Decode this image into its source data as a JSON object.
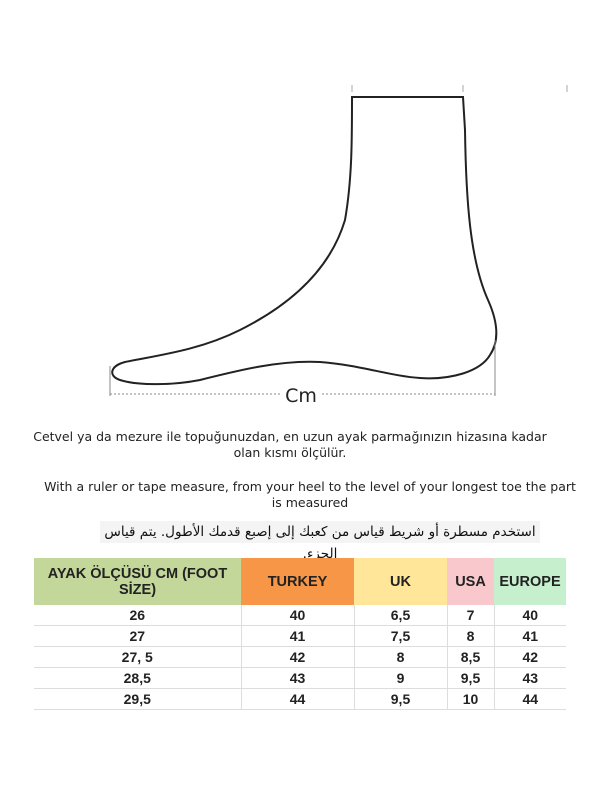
{
  "diagram": {
    "measure_label": "Cm"
  },
  "instructions": {
    "turkish": "Cetvel ya da mezure ile topuğunuzdan, en uzun ayak parmağınızın hizasına kadar olan kısmı ölçülür.",
    "english": "With a ruler or tape measure, from your heel to the level of your longest toe the part is measured",
    "arabic": "استخدم مسطرة أو شريط قياس من كعبك إلى إصبع قدمك الأطول. يتم قياس الجزء."
  },
  "table": {
    "headers": [
      {
        "label": "AYAK ÖLÇÜSÜ CM (FOOT SİZE)",
        "color": "#c4d79b"
      },
      {
        "label": "TURKEY",
        "color": "#f79646"
      },
      {
        "label": "UK",
        "color": "#ffe699"
      },
      {
        "label": "USA",
        "color": "#f8c8cc"
      },
      {
        "label": "EUROPE",
        "color": "#c6efce"
      }
    ],
    "rows": [
      [
        "26",
        "40",
        "6,5",
        "7",
        "40"
      ],
      [
        "27",
        "41",
        "7,5",
        "8",
        "41"
      ],
      [
        "27, 5",
        "42",
        "8",
        "8,5",
        "42"
      ],
      [
        "28,5",
        "43",
        "9",
        "9,5",
        "43"
      ],
      [
        "29,5",
        "44",
        "9,5",
        "10",
        "44"
      ]
    ]
  }
}
